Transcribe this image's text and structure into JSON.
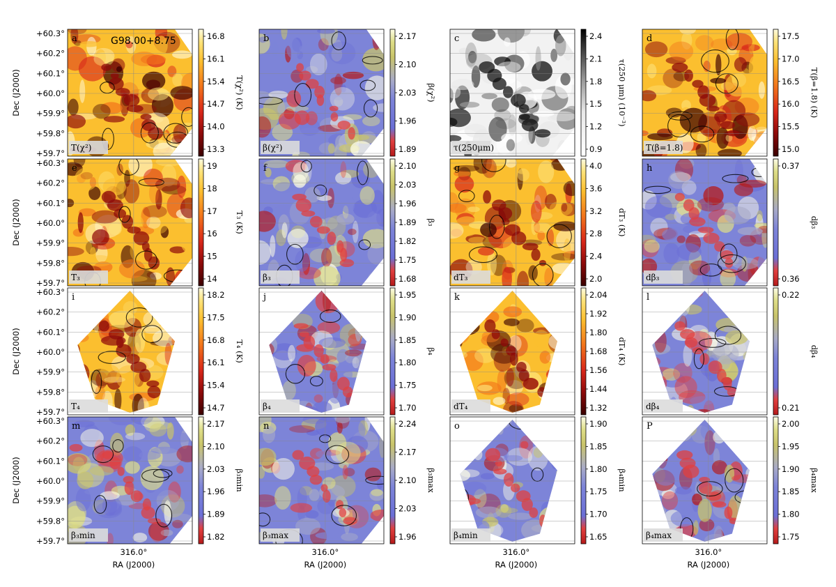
{
  "figure": {
    "ylabel": "Dec (J2000)",
    "xlabel": "RA (J2000)",
    "dec_ticks": [
      "+60.3°",
      "+60.2°",
      "+60.1°",
      "+60.0°",
      "+59.9°",
      "+59.8°",
      "+59.7°"
    ],
    "ra_tick": "316.0°"
  },
  "chart_data": [
    {
      "type": "heatmap",
      "letter": "a",
      "inset": "T(χ²)",
      "field": "G98.00+8.75",
      "cbar_label": "T(χ²) (K)",
      "ticks": [
        "16.8",
        "16.1",
        "15.4",
        "14.7",
        "14.0",
        "13.3"
      ],
      "colormap": "hot",
      "shape": "square"
    },
    {
      "type": "heatmap",
      "letter": "b",
      "inset": "β(χ²)",
      "cbar_label": "β(χ²)",
      "ticks": [
        "2.17",
        "2.10",
        "2.03",
        "1.96",
        "1.89"
      ],
      "colormap": "blue-yellow",
      "shape": "square"
    },
    {
      "type": "heatmap",
      "letter": "c",
      "inset": "τ(250μm)",
      "cbar_label": "τ(250 μm) (10⁻³)",
      "ticks": [
        "2.4",
        "2.1",
        "1.8",
        "1.5",
        "1.2",
        "0.9"
      ],
      "colormap": "gray",
      "shape": "square"
    },
    {
      "type": "heatmap",
      "letter": "d",
      "inset": "T(β=1.8)",
      "cbar_label": "T(β=1.8) (K)",
      "ticks": [
        "17.5",
        "17.0",
        "16.5",
        "16.0",
        "15.5",
        "15.0"
      ],
      "colormap": "hot",
      "shape": "square"
    },
    {
      "type": "heatmap",
      "letter": "e",
      "inset": "T₃",
      "cbar_label": "T₃ (K)",
      "ticks": [
        "19",
        "18",
        "17",
        "16",
        "15",
        "14"
      ],
      "colormap": "hot",
      "shape": "square"
    },
    {
      "type": "heatmap",
      "letter": "f",
      "inset": "β₃",
      "cbar_label": "β₃",
      "ticks": [
        "2.10",
        "2.03",
        "1.96",
        "1.89",
        "1.82",
        "1.75",
        "1.68"
      ],
      "colormap": "blue-yellow",
      "shape": "square"
    },
    {
      "type": "heatmap",
      "letter": "g",
      "inset": "dT₃",
      "cbar_label": "dT₃ (K)",
      "ticks": [
        "4.0",
        "3.6",
        "3.2",
        "2.8",
        "2.4",
        "2.0"
      ],
      "colormap": "hot",
      "shape": "square"
    },
    {
      "type": "heatmap",
      "letter": "h",
      "inset": "dβ₃",
      "cbar_label": "dβ₃",
      "ticks": [
        "0.37",
        "0.36"
      ],
      "colormap": "blue-yellow",
      "shape": "square"
    },
    {
      "type": "heatmap",
      "letter": "i",
      "inset": "T₄",
      "cbar_label": "T₄ (K)",
      "ticks": [
        "18.2",
        "17.5",
        "16.8",
        "16.1",
        "15.4",
        "14.7"
      ],
      "colormap": "hot",
      "shape": "diamond"
    },
    {
      "type": "heatmap",
      "letter": "j",
      "inset": "β₄",
      "cbar_label": "β₄",
      "ticks": [
        "1.95",
        "1.90",
        "1.85",
        "1.80",
        "1.75",
        "1.70"
      ],
      "colormap": "blue-yellow",
      "shape": "diamond"
    },
    {
      "type": "heatmap",
      "letter": "k",
      "inset": "dT₄",
      "cbar_label": "dT₄ (K)",
      "ticks": [
        "2.04",
        "1.92",
        "1.80",
        "1.68",
        "1.56",
        "1.44",
        "1.32"
      ],
      "colormap": "hot",
      "shape": "diamond"
    },
    {
      "type": "heatmap",
      "letter": "l",
      "inset": "dβ₄",
      "cbar_label": "dβ₄",
      "ticks": [
        "0.22",
        "0.21"
      ],
      "colormap": "blue-yellow",
      "shape": "diamond"
    },
    {
      "type": "heatmap",
      "letter": "m",
      "inset": "β₃min",
      "cbar_label": "β₃min",
      "ticks": [
        "2.17",
        "2.10",
        "2.03",
        "1.96",
        "1.89",
        "1.82"
      ],
      "colormap": "blue-yellow",
      "shape": "square"
    },
    {
      "type": "heatmap",
      "letter": "n",
      "inset": "β₃max",
      "cbar_label": "β₃max",
      "ticks": [
        "2.24",
        "2.17",
        "2.10",
        "2.03",
        "1.96"
      ],
      "colormap": "blue-yellow",
      "shape": "square"
    },
    {
      "type": "heatmap",
      "letter": "o",
      "inset": "β₄min",
      "cbar_label": "β₄min",
      "ticks": [
        "1.90",
        "1.85",
        "1.80",
        "1.75",
        "1.70",
        "1.65"
      ],
      "colormap": "blue-yellow",
      "shape": "diamond"
    },
    {
      "type": "heatmap",
      "letter": "P",
      "inset": "β₄max",
      "cbar_label": "β₄max",
      "ticks": [
        "2.00",
        "1.95",
        "1.90",
        "1.85",
        "1.80",
        "1.75"
      ],
      "colormap": "blue-yellow",
      "shape": "diamond"
    }
  ]
}
